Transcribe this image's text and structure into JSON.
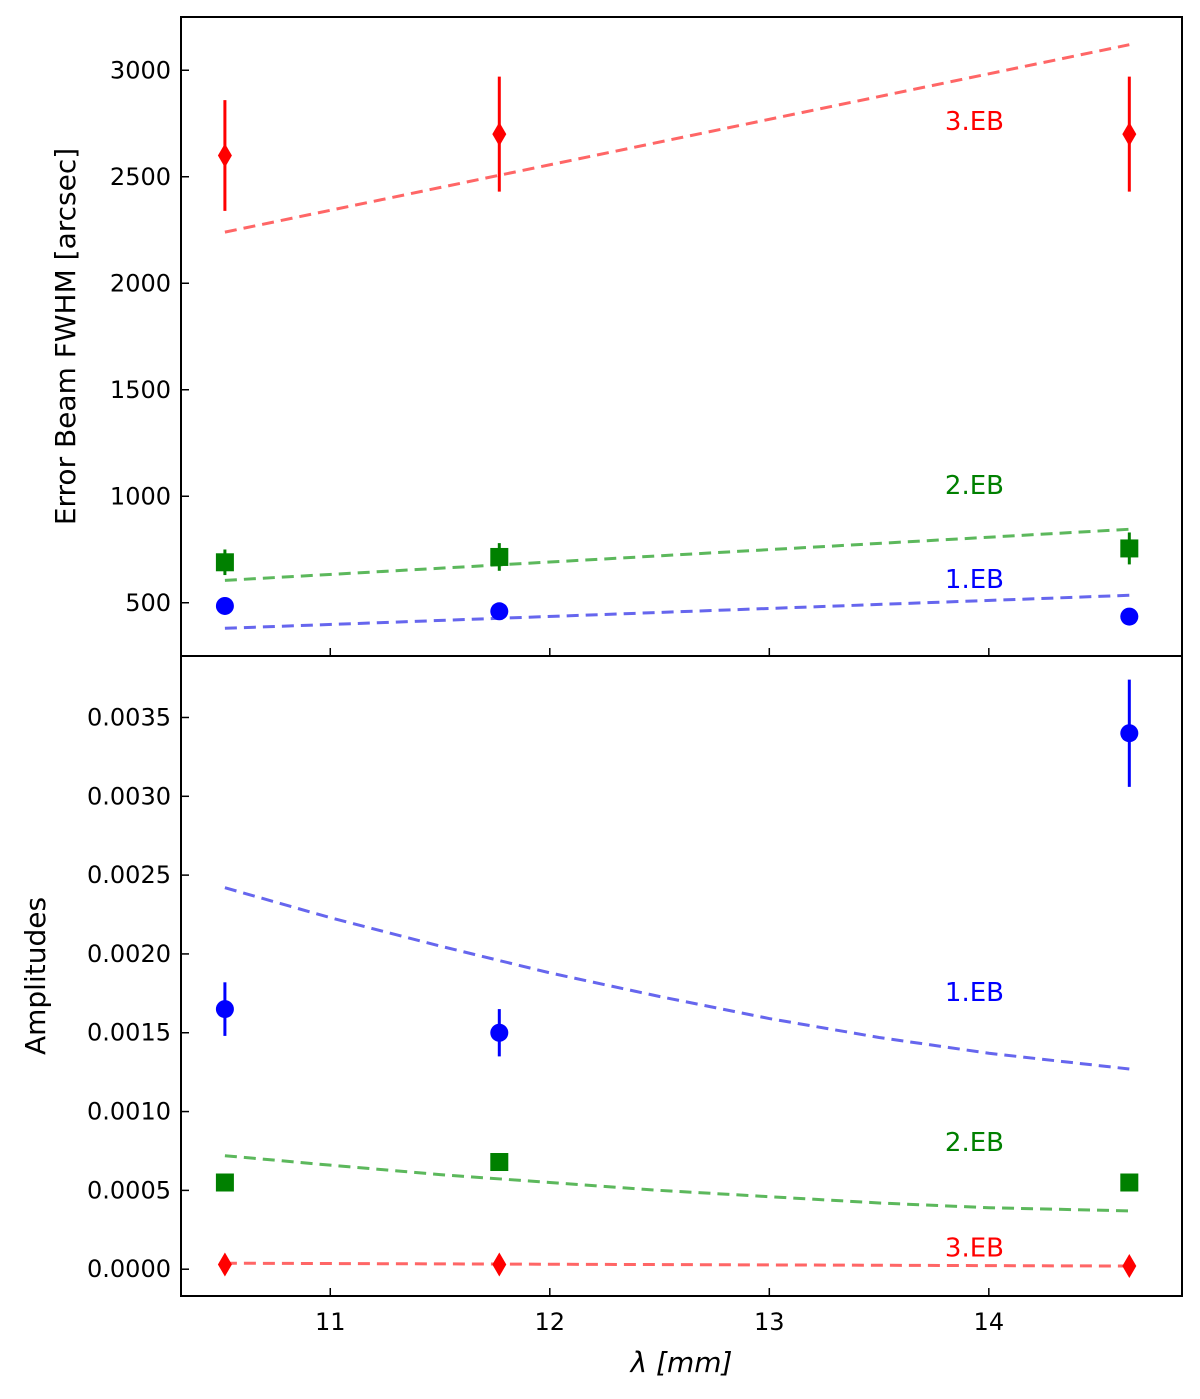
{
  "chart_data": [
    {
      "type": "scatter",
      "panel": "top",
      "ylabel": "Error Beam FWHM [arcsec]",
      "xlim": [
        10.32,
        14.88
      ],
      "ylim": [
        250,
        3250
      ],
      "yticks": [
        500,
        1000,
        1500,
        2000,
        2500,
        3000
      ],
      "yticklabels": [
        "500",
        "1000",
        "1500",
        "2000",
        "2500",
        "3000"
      ],
      "xticks": [
        11,
        12,
        13,
        14
      ],
      "series": [
        {
          "label": "1.EB",
          "label_pos": [
            13.8,
            570
          ],
          "color": "#0000ff",
          "marker": "circle",
          "x": [
            10.52,
            11.77,
            14.64
          ],
          "y": [
            485,
            460,
            435
          ],
          "yerr": [
            25,
            20,
            12
          ],
          "model": {
            "x": [
              10.52,
              14.64
            ],
            "y": [
              380,
              535
            ],
            "color": "#6666ee"
          }
        },
        {
          "label": "2.EB",
          "label_pos": [
            13.8,
            1010
          ],
          "color": "#008000",
          "marker": "square",
          "x": [
            10.52,
            11.77,
            14.64
          ],
          "y": [
            690,
            715,
            755
          ],
          "yerr": [
            60,
            65,
            75
          ],
          "model": {
            "x": [
              10.52,
              14.64
            ],
            "y": [
              605,
              845
            ],
            "color": "#5cb85c"
          }
        },
        {
          "label": "3.EB",
          "label_pos": [
            13.8,
            2720
          ],
          "color": "#ff0000",
          "marker": "diamond",
          "x": [
            10.52,
            11.77,
            14.64
          ],
          "y": [
            2600,
            2700,
            2700
          ],
          "yerr": [
            260,
            270,
            270
          ],
          "model": {
            "x": [
              10.52,
              14.64
            ],
            "y": [
              2240,
              3120
            ],
            "color": "#ff6666"
          }
        }
      ]
    },
    {
      "type": "scatter",
      "panel": "bottom",
      "xlabel": "λ [mm]",
      "ylabel": "Amplitudes",
      "xlim": [
        10.32,
        14.88
      ],
      "ylim": [
        -0.00017,
        0.00389
      ],
      "xticks": [
        11,
        12,
        13,
        14
      ],
      "xticklabels": [
        "11",
        "12",
        "13",
        "14"
      ],
      "yticks": [
        0,
        0.0005,
        0.001,
        0.0015,
        0.002,
        0.0025,
        0.003,
        0.0035
      ],
      "yticklabels": [
        "0.0000",
        "0.0005",
        "0.0010",
        "0.0015",
        "0.0020",
        "0.0025",
        "0.0030",
        "0.0035"
      ],
      "series": [
        {
          "label": "1.EB",
          "label_pos": [
            13.8,
            0.0017
          ],
          "color": "#0000ff",
          "marker": "circle",
          "x": [
            10.52,
            11.77,
            14.64
          ],
          "y": [
            0.00165,
            0.0015,
            0.0034
          ],
          "yerr": [
            0.00017,
            0.00015,
            0.00034
          ],
          "model": {
            "x": [
              10.52,
              11.0,
              11.5,
              12.0,
              12.5,
              13.0,
              13.5,
              14.0,
              14.64
            ],
            "y": [
              0.00242,
              0.00223,
              0.00205,
              0.00188,
              0.00173,
              0.00159,
              0.00147,
              0.00137,
              0.00127
            ],
            "color": "#6666ee"
          }
        },
        {
          "label": "2.EB",
          "label_pos": [
            13.8,
            0.00075
          ],
          "color": "#008000",
          "marker": "square",
          "x": [
            10.52,
            11.77,
            14.64
          ],
          "y": [
            0.00055,
            0.00068,
            0.00055
          ],
          "yerr": [
            2e-05,
            3e-05,
            2e-05
          ],
          "model": {
            "x": [
              10.52,
              11.0,
              11.5,
              12.0,
              12.5,
              13.0,
              13.5,
              14.0,
              14.64
            ],
            "y": [
              0.00072,
              0.00066,
              0.0006,
              0.00055,
              0.0005,
              0.00046,
              0.00042,
              0.00039,
              0.00037
            ],
            "color": "#5cb85c"
          }
        },
        {
          "label": "3.EB",
          "label_pos": [
            13.8,
            8e-05
          ],
          "color": "#ff0000",
          "marker": "diamond",
          "x": [
            10.52,
            11.77,
            14.64
          ],
          "y": [
            3e-05,
            3e-05,
            2e-05
          ],
          "yerr": [
            3e-06,
            3e-06,
            2e-06
          ],
          "model": {
            "x": [
              10.52,
              14.64
            ],
            "y": [
              3.8e-05,
              2e-05
            ],
            "color": "#ff6666"
          }
        }
      ]
    }
  ]
}
